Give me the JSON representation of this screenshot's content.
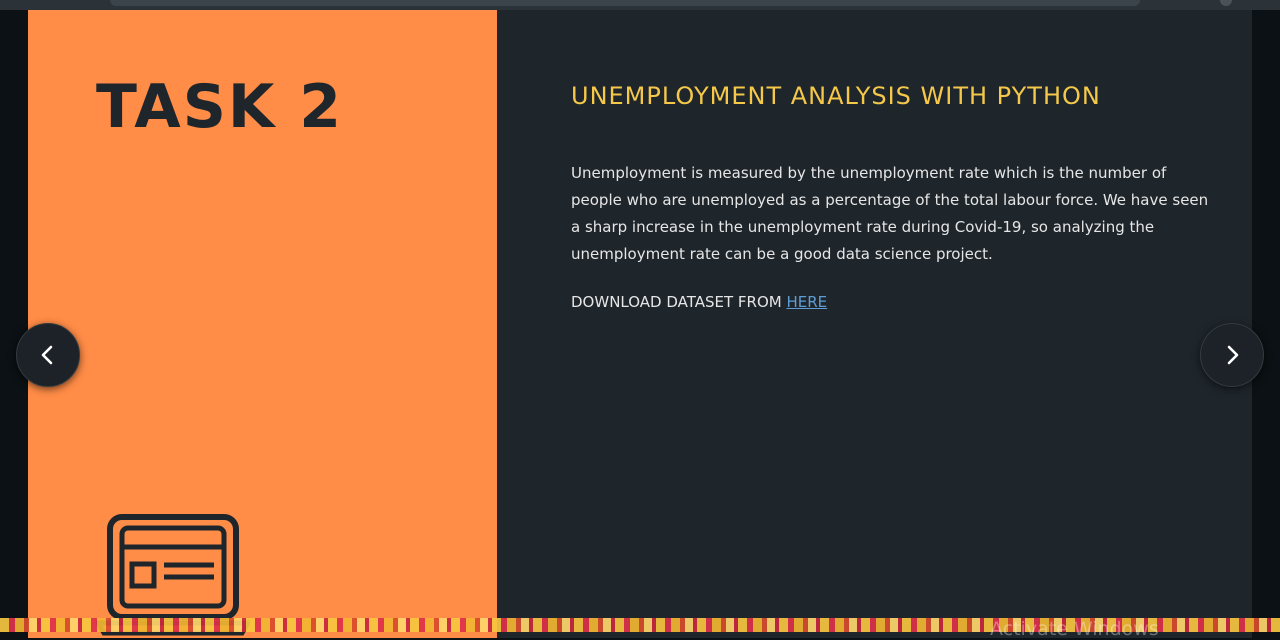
{
  "slide": {
    "task_title": "TASK 2",
    "heading": "UNEMPLOYMENT ANALYSIS WITH PYTHON",
    "description": "Unemployment is measured by the unemployment rate which is the number of people who are unemployed as a percentage of the total labour force. We have seen a sharp increase in the unemployment rate during Covid-19, so analyzing the unemployment rate can be a good data science project.",
    "download_label": "DOWNLOAD DATASET FROM ",
    "download_link": "HERE"
  },
  "overlay": {
    "watermark": "Activate Windows"
  },
  "icons": {
    "prev": "chevron-left-icon",
    "next": "chevron-right-icon",
    "task": "laptop-icon"
  },
  "colors": {
    "accent_orange": "#ff8c47",
    "heading_yellow": "#f5c84a",
    "panel_dark": "#1e252b",
    "link_blue": "#5e9cd6"
  }
}
